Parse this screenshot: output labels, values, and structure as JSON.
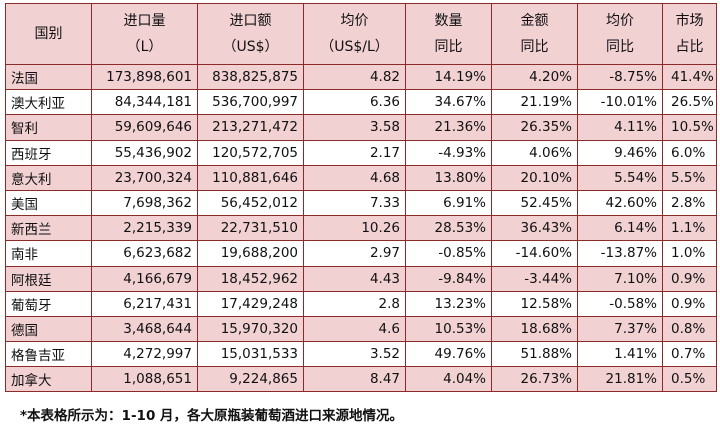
{
  "headers": [
    {
      "line1": "国别",
      "line2": ""
    },
    {
      "line1": "进口量",
      "line2": "（L）"
    },
    {
      "line1": "进口额",
      "line2": "（US$）"
    },
    {
      "line1": "均价",
      "line2": "（US$/L）"
    },
    {
      "line1": "数量",
      "line2": "同比"
    },
    {
      "line1": "金额",
      "line2": "同比"
    },
    {
      "line1": "均价",
      "line2": "同比"
    },
    {
      "line1": "市场",
      "line2": "占比"
    }
  ],
  "rows": [
    [
      "法国",
      "173,898,601",
      "838,825,875",
      "4.82",
      "14.19%",
      "4.20%",
      "-8.75%",
      "41.4%"
    ],
    [
      "澳大利亚",
      "84,344,181",
      "536,700,997",
      "6.36",
      "34.67%",
      "21.19%",
      "-10.01%",
      "26.5%"
    ],
    [
      "智利",
      "59,609,646",
      "213,271,472",
      "3.58",
      "21.36%",
      "26.35%",
      "4.11%",
      "10.5%"
    ],
    [
      "西班牙",
      "55,436,902",
      "120,572,705",
      "2.17",
      "-4.93%",
      "4.06%",
      "9.46%",
      "6.0%"
    ],
    [
      "意大利",
      "23,700,324",
      "110,881,646",
      "4.68",
      "13.80%",
      "20.10%",
      "5.54%",
      "5.5%"
    ],
    [
      "美国",
      "7,698,362",
      "56,452,012",
      "7.33",
      "6.91%",
      "52.45%",
      "42.60%",
      "2.8%"
    ],
    [
      "新西兰",
      "2,215,339",
      "22,731,510",
      "10.26",
      "28.53%",
      "36.43%",
      "6.14%",
      "1.1%"
    ],
    [
      "南非",
      "6,623,682",
      "19,688,200",
      "2.97",
      "-0.85%",
      "-14.60%",
      "-13.87%",
      "1.0%"
    ],
    [
      "阿根廷",
      "4,166,679",
      "18,452,962",
      "4.43",
      "-9.84%",
      "-3.44%",
      "7.10%",
      "0.9%"
    ],
    [
      "葡萄牙",
      "6,217,431",
      "17,429,248",
      "2.8",
      "13.23%",
      "12.58%",
      "-0.58%",
      "0.9%"
    ],
    [
      "德国",
      "3,468,644",
      "15,970,320",
      "4.6",
      "10.53%",
      "18.68%",
      "7.37%",
      "0.8%"
    ],
    [
      "格鲁吉亚",
      "4,272,997",
      "15,031,533",
      "3.52",
      "49.76%",
      "51.88%",
      "1.41%",
      "0.7%"
    ],
    [
      "加拿大",
      "1,088,651",
      "9,224,865",
      "8.47",
      "4.04%",
      "26.73%",
      "21.81%",
      "0.5%"
    ]
  ],
  "note": "*本表格所示为：1-10 月，各大原瓶装葡萄酒进口来源地情况。",
  "colors": {
    "border": "#8c2a2a",
    "stripe": "#f2d1d3"
  }
}
